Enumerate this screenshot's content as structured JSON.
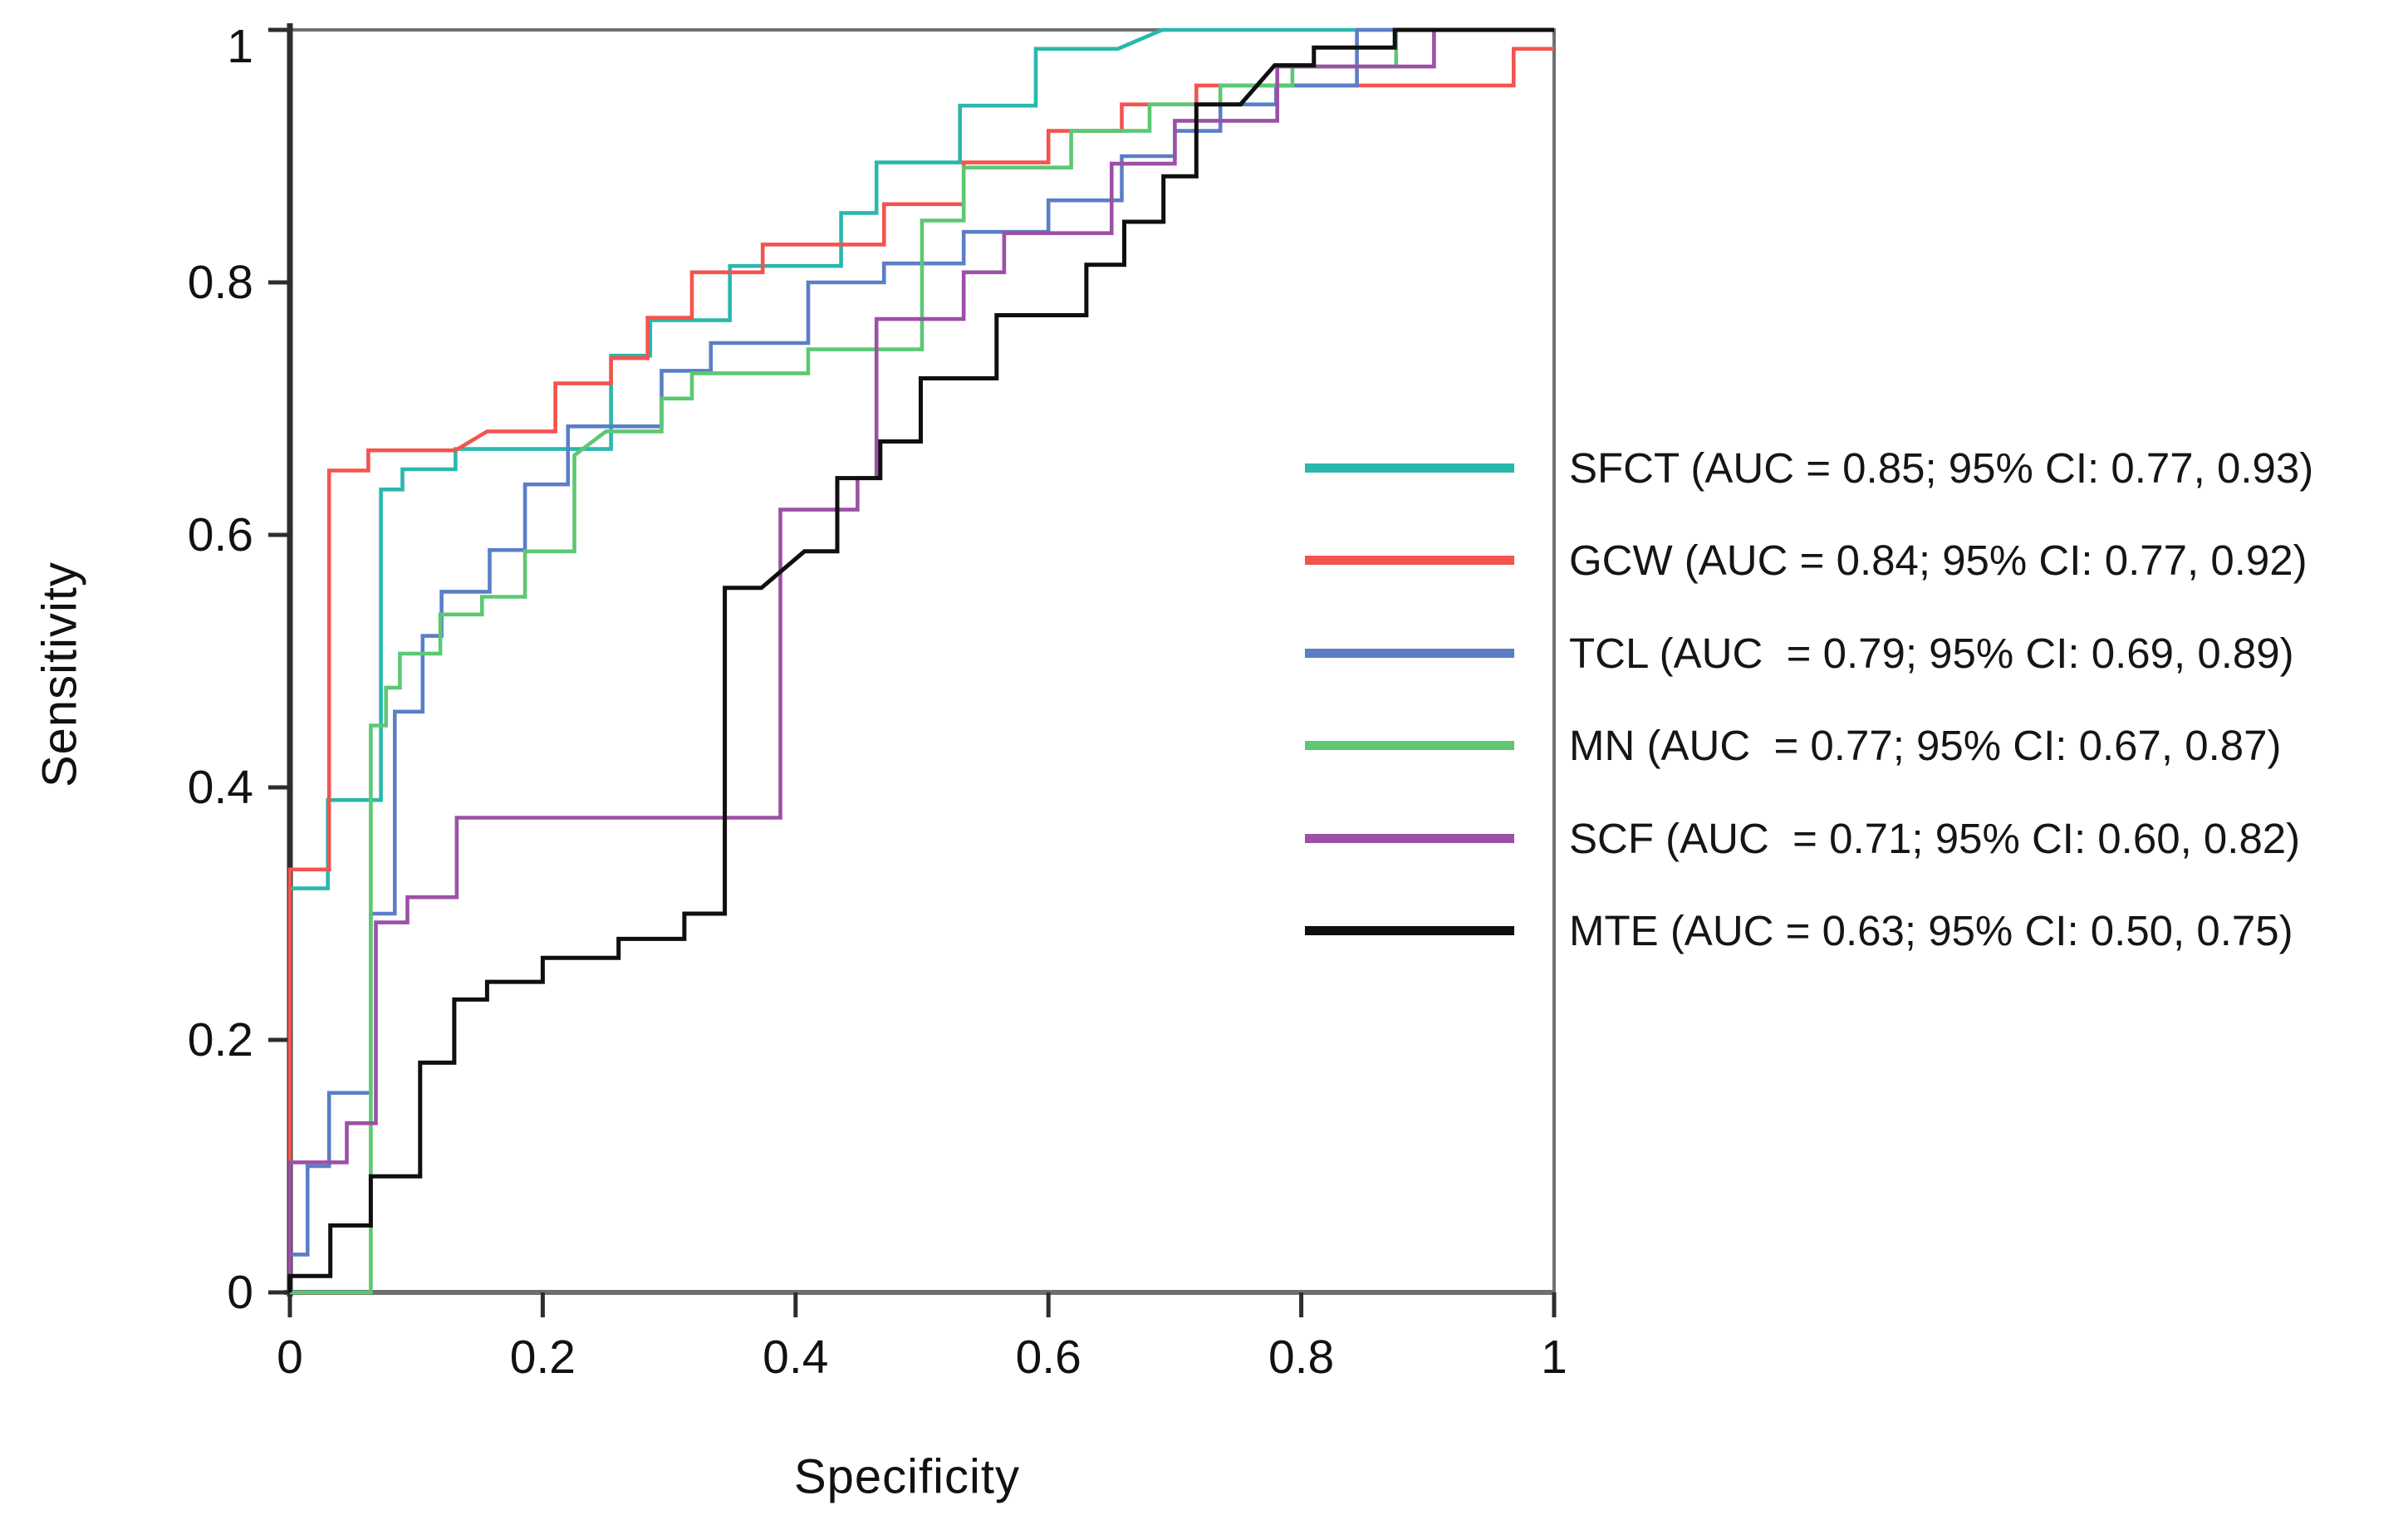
{
  "figure": {
    "background": "#ffffff",
    "frame_color": "#6f6f6f",
    "axis_color": "#2d2d2d",
    "text_color": "#111111"
  },
  "chart_data": {
    "type": "line",
    "subtype": "ROC step curves",
    "title": "",
    "xlabel": "Specificity",
    "ylabel": "Sensitivity",
    "xlim": [
      0,
      1
    ],
    "ylim": [
      0,
      1
    ],
    "grid": false,
    "legend_position": "right",
    "x_ticks": {
      "values": [
        0,
        0.2,
        0.4,
        0.6,
        0.8,
        1
      ],
      "labels": [
        "0",
        "0.2",
        "0.4",
        "0.6",
        "0.8",
        "1"
      ]
    },
    "y_ticks": {
      "values": [
        1,
        0.8,
        0.6,
        0.4,
        0.2,
        0
      ],
      "labels": [
        "1",
        "0.8",
        "0.6",
        "0.4",
        "0.2",
        "0"
      ]
    },
    "series": [
      {
        "name": "SFCT",
        "auc": "0.85",
        "ci_95": "0.77, 0.93",
        "label": "SFCT (AUC = 0.85; 95% CI: 0.77, 0.93)",
        "color": "#2AB7AE",
        "points": [
          [
            0,
            0
          ],
          [
            0,
            0.32
          ],
          [
            0.03,
            0.32
          ],
          [
            0.03,
            0.39
          ],
          [
            0.072,
            0.39
          ],
          [
            0.072,
            0.636
          ],
          [
            0.089,
            0.636
          ],
          [
            0.089,
            0.652
          ],
          [
            0.131,
            0.652
          ],
          [
            0.131,
            0.668
          ],
          [
            0.254,
            0.668
          ],
          [
            0.254,
            0.742
          ],
          [
            0.285,
            0.742
          ],
          [
            0.285,
            0.77
          ],
          [
            0.348,
            0.77
          ],
          [
            0.348,
            0.813
          ],
          [
            0.436,
            0.813
          ],
          [
            0.436,
            0.855
          ],
          [
            0.464,
            0.855
          ],
          [
            0.464,
            0.895
          ],
          [
            0.53,
            0.895
          ],
          [
            0.53,
            0.94
          ],
          [
            0.59,
            0.94
          ],
          [
            0.59,
            0.985
          ],
          [
            0.655,
            0.985
          ],
          [
            0.69,
            1
          ],
          [
            1,
            1
          ]
        ]
      },
      {
        "name": "GCW",
        "auc": "0.84",
        "ci_95": "0.77, 0.92",
        "label": "GCW (AUC = 0.84; 95% CI: 0.77, 0.92)",
        "color": "#F4544E",
        "points": [
          [
            0,
            0
          ],
          [
            0,
            0.335
          ],
          [
            0.031,
            0.335
          ],
          [
            0.031,
            0.651
          ],
          [
            0.062,
            0.651
          ],
          [
            0.062,
            0.667
          ],
          [
            0.131,
            0.667
          ],
          [
            0.156,
            0.682
          ],
          [
            0.21,
            0.682
          ],
          [
            0.21,
            0.72
          ],
          [
            0.254,
            0.72
          ],
          [
            0.254,
            0.74
          ],
          [
            0.283,
            0.74
          ],
          [
            0.283,
            0.772
          ],
          [
            0.318,
            0.772
          ],
          [
            0.318,
            0.808
          ],
          [
            0.374,
            0.808
          ],
          [
            0.374,
            0.83
          ],
          [
            0.47,
            0.83
          ],
          [
            0.47,
            0.862
          ],
          [
            0.533,
            0.862
          ],
          [
            0.533,
            0.895
          ],
          [
            0.6,
            0.895
          ],
          [
            0.6,
            0.92
          ],
          [
            0.658,
            0.92
          ],
          [
            0.658,
            0.941
          ],
          [
            0.717,
            0.941
          ],
          [
            0.717,
            0.956
          ],
          [
            0.968,
            0.956
          ],
          [
            0.968,
            0.985
          ],
          [
            1,
            0.985
          ]
        ]
      },
      {
        "name": "TCL",
        "auc": "0.79",
        "ci_95": "0.69, 0.89",
        "label": "TCL (AUC  = 0.79; 95% CI: 0.69, 0.89)",
        "color": "#5B7EC6",
        "points": [
          [
            0,
            0
          ],
          [
            0,
            0.03
          ],
          [
            0.014,
            0.03
          ],
          [
            0.014,
            0.1
          ],
          [
            0.031,
            0.1
          ],
          [
            0.031,
            0.158
          ],
          [
            0.064,
            0.158
          ],
          [
            0.064,
            0.3
          ],
          [
            0.083,
            0.3
          ],
          [
            0.083,
            0.46
          ],
          [
            0.105,
            0.46
          ],
          [
            0.105,
            0.52
          ],
          [
            0.12,
            0.52
          ],
          [
            0.12,
            0.555
          ],
          [
            0.158,
            0.555
          ],
          [
            0.158,
            0.588
          ],
          [
            0.186,
            0.588
          ],
          [
            0.186,
            0.64
          ],
          [
            0.22,
            0.64
          ],
          [
            0.22,
            0.686
          ],
          [
            0.294,
            0.686
          ],
          [
            0.294,
            0.73
          ],
          [
            0.333,
            0.73
          ],
          [
            0.333,
            0.752
          ],
          [
            0.41,
            0.752
          ],
          [
            0.41,
            0.8
          ],
          [
            0.47,
            0.8
          ],
          [
            0.47,
            0.815
          ],
          [
            0.533,
            0.815
          ],
          [
            0.533,
            0.84
          ],
          [
            0.6,
            0.84
          ],
          [
            0.6,
            0.865
          ],
          [
            0.658,
            0.865
          ],
          [
            0.658,
            0.9
          ],
          [
            0.7,
            0.9
          ],
          [
            0.7,
            0.92
          ],
          [
            0.736,
            0.92
          ],
          [
            0.736,
            0.941
          ],
          [
            0.78,
            0.941
          ],
          [
            0.78,
            0.956
          ],
          [
            0.844,
            0.956
          ],
          [
            0.844,
            1
          ],
          [
            1,
            1
          ]
        ]
      },
      {
        "name": "MN",
        "auc": "0.77",
        "ci_95": "0.67, 0.87",
        "label": "MN (AUC  = 0.77; 95% CI: 0.67, 0.87)",
        "color": "#5CC873",
        "points": [
          [
            0,
            0
          ],
          [
            0.064,
            0
          ],
          [
            0.064,
            0.449
          ],
          [
            0.076,
            0.449
          ],
          [
            0.076,
            0.479
          ],
          [
            0.087,
            0.479
          ],
          [
            0.087,
            0.506
          ],
          [
            0.119,
            0.506
          ],
          [
            0.119,
            0.537
          ],
          [
            0.152,
            0.537
          ],
          [
            0.152,
            0.551
          ],
          [
            0.186,
            0.551
          ],
          [
            0.186,
            0.587
          ],
          [
            0.225,
            0.587
          ],
          [
            0.225,
            0.663
          ],
          [
            0.25,
            0.682
          ],
          [
            0.294,
            0.682
          ],
          [
            0.294,
            0.708
          ],
          [
            0.318,
            0.708
          ],
          [
            0.318,
            0.728
          ],
          [
            0.41,
            0.728
          ],
          [
            0.41,
            0.747
          ],
          [
            0.5,
            0.747
          ],
          [
            0.5,
            0.849
          ],
          [
            0.533,
            0.849
          ],
          [
            0.533,
            0.891
          ],
          [
            0.618,
            0.891
          ],
          [
            0.618,
            0.92
          ],
          [
            0.68,
            0.92
          ],
          [
            0.68,
            0.941
          ],
          [
            0.736,
            0.941
          ],
          [
            0.736,
            0.956
          ],
          [
            0.793,
            0.956
          ],
          [
            0.793,
            0.971
          ],
          [
            0.875,
            0.971
          ],
          [
            0.875,
            1
          ],
          [
            1,
            1
          ]
        ]
      },
      {
        "name": "SCF",
        "auc": "0.71",
        "ci_95": "0.60, 0.82",
        "label": "SCF (AUC  = 0.71; 95% CI: 0.60, 0.82)",
        "color": "#9C50A6",
        "points": [
          [
            0,
            0
          ],
          [
            0,
            0.103
          ],
          [
            0.045,
            0.103
          ],
          [
            0.045,
            0.134
          ],
          [
            0.068,
            0.134
          ],
          [
            0.068,
            0.293
          ],
          [
            0.093,
            0.293
          ],
          [
            0.093,
            0.313
          ],
          [
            0.132,
            0.313
          ],
          [
            0.132,
            0.376
          ],
          [
            0.388,
            0.376
          ],
          [
            0.388,
            0.62
          ],
          [
            0.449,
            0.62
          ],
          [
            0.449,
            0.645
          ],
          [
            0.464,
            0.645
          ],
          [
            0.464,
            0.771
          ],
          [
            0.533,
            0.771
          ],
          [
            0.533,
            0.808
          ],
          [
            0.565,
            0.808
          ],
          [
            0.565,
            0.839
          ],
          [
            0.65,
            0.839
          ],
          [
            0.65,
            0.894
          ],
          [
            0.7,
            0.894
          ],
          [
            0.7,
            0.928
          ],
          [
            0.781,
            0.928
          ],
          [
            0.781,
            0.971
          ],
          [
            0.905,
            0.971
          ],
          [
            0.905,
            1
          ],
          [
            1,
            1
          ]
        ]
      },
      {
        "name": "MTE",
        "auc": "0.63",
        "ci_95": "0.50, 0.75",
        "label": "MTE (AUC = 0.63; 95% CI: 0.50, 0.75)",
        "color": "#0F0F0F",
        "points": [
          [
            0,
            0
          ],
          [
            0,
            0.013
          ],
          [
            0.032,
            0.013
          ],
          [
            0.032,
            0.053
          ],
          [
            0.064,
            0.053
          ],
          [
            0.064,
            0.092
          ],
          [
            0.103,
            0.092
          ],
          [
            0.103,
            0.182
          ],
          [
            0.13,
            0.182
          ],
          [
            0.13,
            0.232
          ],
          [
            0.156,
            0.232
          ],
          [
            0.156,
            0.246
          ],
          [
            0.2,
            0.246
          ],
          [
            0.2,
            0.265
          ],
          [
            0.26,
            0.265
          ],
          [
            0.26,
            0.28
          ],
          [
            0.312,
            0.28
          ],
          [
            0.312,
            0.3
          ],
          [
            0.344,
            0.3
          ],
          [
            0.344,
            0.558
          ],
          [
            0.373,
            0.558
          ],
          [
            0.407,
            0.587
          ],
          [
            0.433,
            0.587
          ],
          [
            0.433,
            0.645
          ],
          [
            0.467,
            0.645
          ],
          [
            0.467,
            0.674
          ],
          [
            0.499,
            0.674
          ],
          [
            0.499,
            0.724
          ],
          [
            0.559,
            0.724
          ],
          [
            0.559,
            0.774
          ],
          [
            0.63,
            0.774
          ],
          [
            0.63,
            0.814
          ],
          [
            0.66,
            0.814
          ],
          [
            0.66,
            0.848
          ],
          [
            0.691,
            0.848
          ],
          [
            0.691,
            0.884
          ],
          [
            0.717,
            0.884
          ],
          [
            0.717,
            0.941
          ],
          [
            0.752,
            0.941
          ],
          [
            0.779,
            0.972
          ],
          [
            0.81,
            0.972
          ],
          [
            0.81,
            0.986
          ],
          [
            0.874,
            0.986
          ],
          [
            0.874,
            1
          ],
          [
            1,
            1
          ]
        ]
      }
    ]
  }
}
